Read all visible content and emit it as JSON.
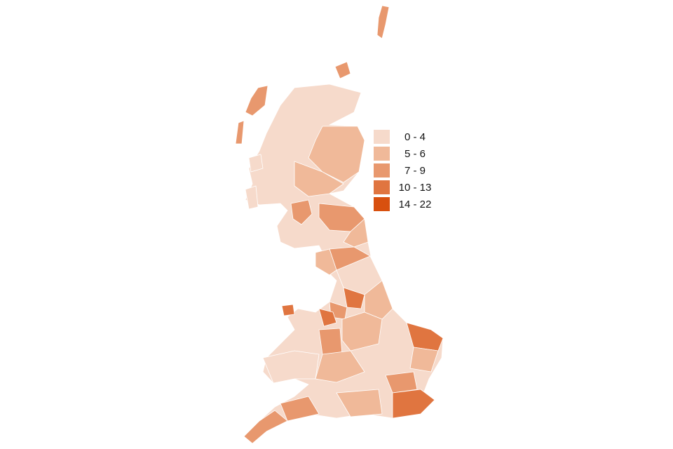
{
  "map": {
    "region": "Great Britain",
    "type": "choropleth"
  },
  "legend": {
    "items": [
      {
        "label": "0 - 4",
        "color": "#F6DACB"
      },
      {
        "label": "5 - 6",
        "color": "#F0B999"
      },
      {
        "label": "7 - 9",
        "color": "#E8986E"
      },
      {
        "label": "10 - 13",
        "color": "#E07540"
      },
      {
        "label": "14 - 22",
        "color": "#D8500F"
      }
    ]
  }
}
